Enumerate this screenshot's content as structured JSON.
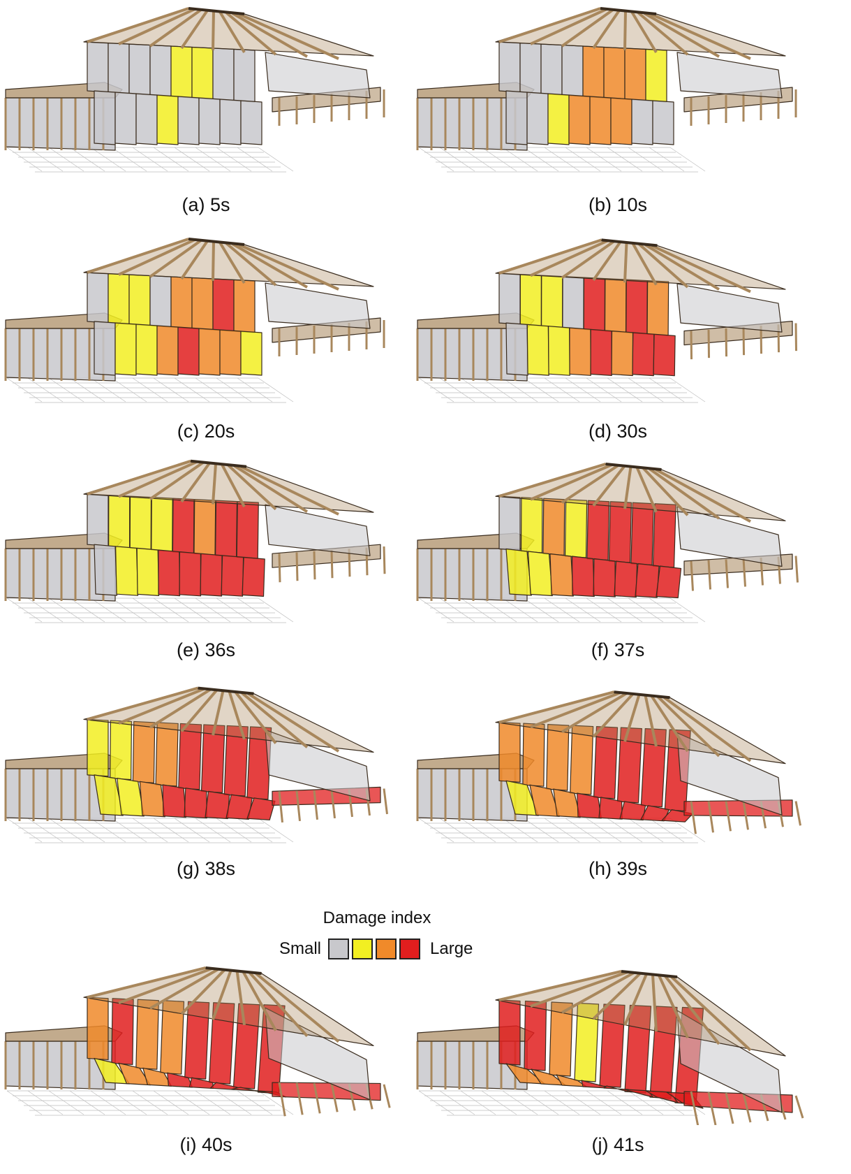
{
  "colors": {
    "small": "#c8c8cc",
    "low": "#f2ef22",
    "medium": "#f08a2a",
    "large": "#e11e1e",
    "timber": "#a8875c",
    "outline": "#3a2c1e",
    "grid": "#bdbdbd"
  },
  "panels": [
    {
      "caption": "(a) 5s",
      "collapse": 0.0,
      "damage": [
        0,
        0,
        0,
        0,
        1,
        1,
        0,
        0,
        0,
        0,
        0,
        1,
        0,
        0,
        0,
        0
      ]
    },
    {
      "caption": "(b) 10s",
      "collapse": 0.0,
      "damage": [
        0,
        0,
        0,
        0,
        2,
        2,
        2,
        1,
        0,
        0,
        1,
        2,
        2,
        2,
        0,
        0
      ]
    },
    {
      "caption": "(c) 20s",
      "collapse": 0.0,
      "damage": [
        0,
        1,
        1,
        0,
        2,
        2,
        3,
        2,
        0,
        1,
        1,
        2,
        3,
        2,
        2,
        1
      ]
    },
    {
      "caption": "(d) 30s",
      "collapse": 0.05,
      "damage": [
        0,
        1,
        1,
        0,
        3,
        2,
        3,
        2,
        0,
        1,
        1,
        2,
        3,
        2,
        3,
        3
      ]
    },
    {
      "caption": "(e) 36s",
      "collapse": 0.1,
      "damage": [
        0,
        1,
        1,
        1,
        3,
        2,
        3,
        3,
        0,
        1,
        1,
        3,
        3,
        3,
        3,
        3
      ]
    },
    {
      "caption": "(f) 37s",
      "collapse": 0.25,
      "damage": [
        0,
        1,
        2,
        1,
        3,
        3,
        3,
        3,
        1,
        1,
        2,
        3,
        3,
        3,
        3,
        3
      ]
    },
    {
      "caption": "(g) 38s",
      "collapse": 0.45,
      "damage": [
        1,
        1,
        2,
        2,
        3,
        3,
        3,
        3,
        1,
        1,
        2,
        3,
        3,
        3,
        3,
        3
      ]
    },
    {
      "caption": "(h) 39s",
      "collapse": 0.65,
      "damage": [
        2,
        2,
        2,
        2,
        3,
        3,
        3,
        3,
        1,
        2,
        2,
        3,
        3,
        3,
        3,
        3
      ]
    },
    {
      "caption": "(i) 40s",
      "collapse": 0.82,
      "damage": [
        2,
        3,
        2,
        2,
        3,
        3,
        3,
        3,
        1,
        2,
        2,
        3,
        3,
        3,
        3,
        3
      ]
    },
    {
      "caption": "(j) 41s",
      "collapse": 1.0,
      "damage": [
        3,
        3,
        2,
        1,
        3,
        3,
        3,
        3,
        2,
        2,
        2,
        3,
        3,
        3,
        3,
        3
      ]
    }
  ],
  "legend": {
    "title": "Damage index",
    "small_label": "Small",
    "large_label": "Large",
    "swatches": [
      "#c8c8cc",
      "#f2ef22",
      "#f08a2a",
      "#e11e1e"
    ]
  }
}
